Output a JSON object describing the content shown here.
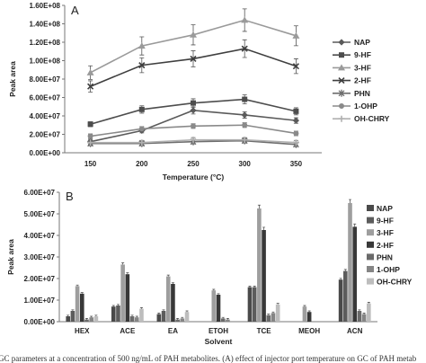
{
  "chart_data": [
    {
      "type": "line",
      "panel_label": "A",
      "xlabel": "Temperature (°C)",
      "ylabel": "Peak area",
      "x": [
        150,
        200,
        250,
        300,
        350
      ],
      "x_tick_labels": [
        "150",
        "200",
        "250",
        "300",
        "350"
      ],
      "ylim": [
        0,
        160000000
      ],
      "y_tick_labels": [
        "0.00E+00",
        "2.00E+07",
        "4.00E+07",
        "6.00E+07",
        "8.00E+07",
        "1.00E+08",
        "1.20E+08",
        "1.40E+08",
        "1.60E+08"
      ],
      "series": [
        {
          "name": "NAP",
          "values": [
            12000000,
            24000000,
            46000000,
            41000000,
            35000000
          ],
          "color": "#5a5a5a",
          "marker": "diamond"
        },
        {
          "name": "9-HF",
          "values": [
            31000000,
            47000000,
            54000000,
            58000000,
            45000000
          ],
          "color": "#4d4d4d",
          "marker": "square"
        },
        {
          "name": "3-HF",
          "values": [
            87000000,
            116000000,
            128000000,
            144000000,
            127000000
          ],
          "color": "#9a9a9a",
          "marker": "triangle"
        },
        {
          "name": "2-HF",
          "values": [
            72000000,
            95000000,
            102000000,
            113000000,
            94000000
          ],
          "color": "#3f3f3f",
          "marker": "x"
        },
        {
          "name": "PHN",
          "values": [
            10000000,
            10000000,
            12000000,
            13000000,
            9000000
          ],
          "color": "#6e6e6e",
          "marker": "star"
        },
        {
          "name": "1-OHP",
          "values": [
            18000000,
            26000000,
            29000000,
            30000000,
            21000000
          ],
          "color": "#8a8a8a",
          "marker": "circle"
        },
        {
          "name": "OH-CHRY",
          "values": [
            11000000,
            11000000,
            14000000,
            14000000,
            11000000
          ],
          "color": "#b0b0b0",
          "marker": "plus"
        }
      ],
      "legend_position": "right"
    },
    {
      "type": "bar",
      "panel_label": "B",
      "xlabel": "Solvent",
      "ylabel": "Peak area",
      "categories": [
        "HEX",
        "ACE",
        "EA",
        "ETOH",
        "TCE",
        "MEOH",
        "ACN"
      ],
      "ylim": [
        0,
        60000000
      ],
      "y_tick_labels": [
        "0.00E+00",
        "1.00E+07",
        "2.00E+07",
        "3.00E+07",
        "4.00E+07",
        "5.00E+07",
        "6.00E+07"
      ],
      "series": [
        {
          "name": "NAP",
          "values": [
            2500000,
            7000000,
            3500000,
            0,
            16000000,
            0,
            19500000
          ],
          "color": "#4a4a4a"
        },
        {
          "name": "9-HF",
          "values": [
            5000000,
            7500000,
            5000000,
            0,
            16000000,
            0,
            23500000
          ],
          "color": "#5c5c5c"
        },
        {
          "name": "3-HF",
          "values": [
            16500000,
            26500000,
            21000000,
            14500000,
            52500000,
            7000000,
            55000000
          ],
          "color": "#9e9e9e"
        },
        {
          "name": "2-HF",
          "values": [
            13000000,
            22000000,
            17500000,
            12500000,
            42500000,
            4500000,
            44000000
          ],
          "color": "#383838"
        },
        {
          "name": "PHN",
          "values": [
            1000000,
            2500000,
            1000000,
            1500000,
            3000000,
            0,
            5000000
          ],
          "color": "#6a6a6a"
        },
        {
          "name": "1-OHP",
          "values": [
            2000000,
            2000000,
            1500000,
            1000000,
            4000000,
            0,
            3500000
          ],
          "color": "#858585"
        },
        {
          "name": "OH-CHRY",
          "values": [
            2500000,
            6000000,
            4500000,
            0,
            8000000,
            0,
            8500000
          ],
          "color": "#bdbdbd"
        }
      ],
      "legend_position": "right"
    }
  ],
  "caption": "GC parameters at a concentration of 500 ng/mL of PAH metabolites. (A) effect of injector port temperature on GC of PAH metab"
}
